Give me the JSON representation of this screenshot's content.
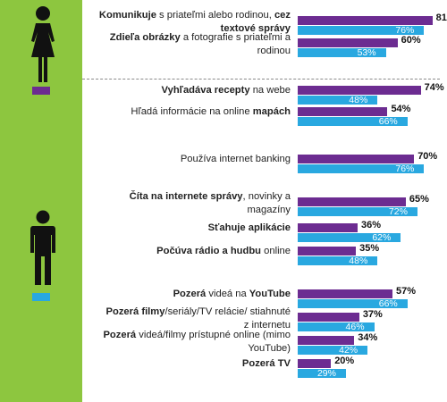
{
  "colors": {
    "sidebar": "#8dc63f",
    "women_bar": "#6c2c91",
    "all_bar": "#29a8e0",
    "divider": "#8a8a8a"
  },
  "icons": {
    "female": "female-person-icon",
    "male": "male-person-icon"
  },
  "chart_data": {
    "type": "bar",
    "orientation": "horizontal",
    "xlim": [
      0,
      100
    ],
    "unit": "%",
    "rows": [
      {
        "label_parts": [
          {
            "b": true,
            "t": "Komunikuje"
          },
          {
            "b": false,
            "t": " s priateľmi alebo rodinou, "
          },
          {
            "b": true,
            "t": "cez textové správy"
          }
        ],
        "women": 81,
        "all": 76,
        "lines": 2
      },
      {
        "label_parts": [
          {
            "b": true,
            "t": "Zdieľa obrázky"
          },
          {
            "b": false,
            "t": " a fotografie s priateľmi a rodinou"
          }
        ],
        "women": 60,
        "all": 53,
        "lines": 2
      },
      {
        "label_parts": [
          {
            "b": true,
            "t": "Vyhľadáva recepty"
          },
          {
            "b": false,
            "t": " na webe"
          }
        ],
        "women": 74,
        "all": 48,
        "lines": 1
      },
      {
        "label_parts": [
          {
            "b": false,
            "t": "Hľadá informácie na online "
          },
          {
            "b": true,
            "t": "mapách"
          }
        ],
        "women": 54,
        "all": 66,
        "lines": 1
      },
      {
        "label_parts": [
          {
            "b": false,
            "t": "Používa internet banking"
          }
        ],
        "women": 70,
        "all": 76,
        "lines": 1
      },
      {
        "label_parts": [
          {
            "b": true,
            "t": "Číta na internete správy"
          },
          {
            "b": false,
            "t": ", novinky a magazíny"
          }
        ],
        "women": 65,
        "all": 72,
        "lines": 2
      },
      {
        "label_parts": [
          {
            "b": true,
            "t": "Sťahuje aplikácie"
          }
        ],
        "women": 36,
        "all": 62,
        "lines": 1
      },
      {
        "label_parts": [
          {
            "b": true,
            "t": "Počúva rádio a hudbu"
          },
          {
            "b": false,
            "t": " online"
          }
        ],
        "women": 35,
        "all": 48,
        "lines": 1
      },
      {
        "label_parts": [
          {
            "b": true,
            "t": "Pozerá"
          },
          {
            "b": false,
            "t": " videá na "
          },
          {
            "b": true,
            "t": "YouTube"
          }
        ],
        "women": 57,
        "all": 66,
        "lines": 1
      },
      {
        "label_parts": [
          {
            "b": true,
            "t": "Pozerá filmy"
          },
          {
            "b": false,
            "t": "/seriály/TV relácie/ stiahnuté z internetu"
          }
        ],
        "women": 37,
        "all": 46,
        "lines": 2
      },
      {
        "label_parts": [
          {
            "b": true,
            "t": "Pozerá"
          },
          {
            "b": false,
            "t": " videá/filmy prístupné online (mimo YouTube)"
          }
        ],
        "women": 34,
        "all": 42,
        "lines": 2
      },
      {
        "label_parts": [
          {
            "b": true,
            "t": "Pozerá TV"
          }
        ],
        "women": 20,
        "all": 29,
        "lines": 1
      }
    ]
  }
}
